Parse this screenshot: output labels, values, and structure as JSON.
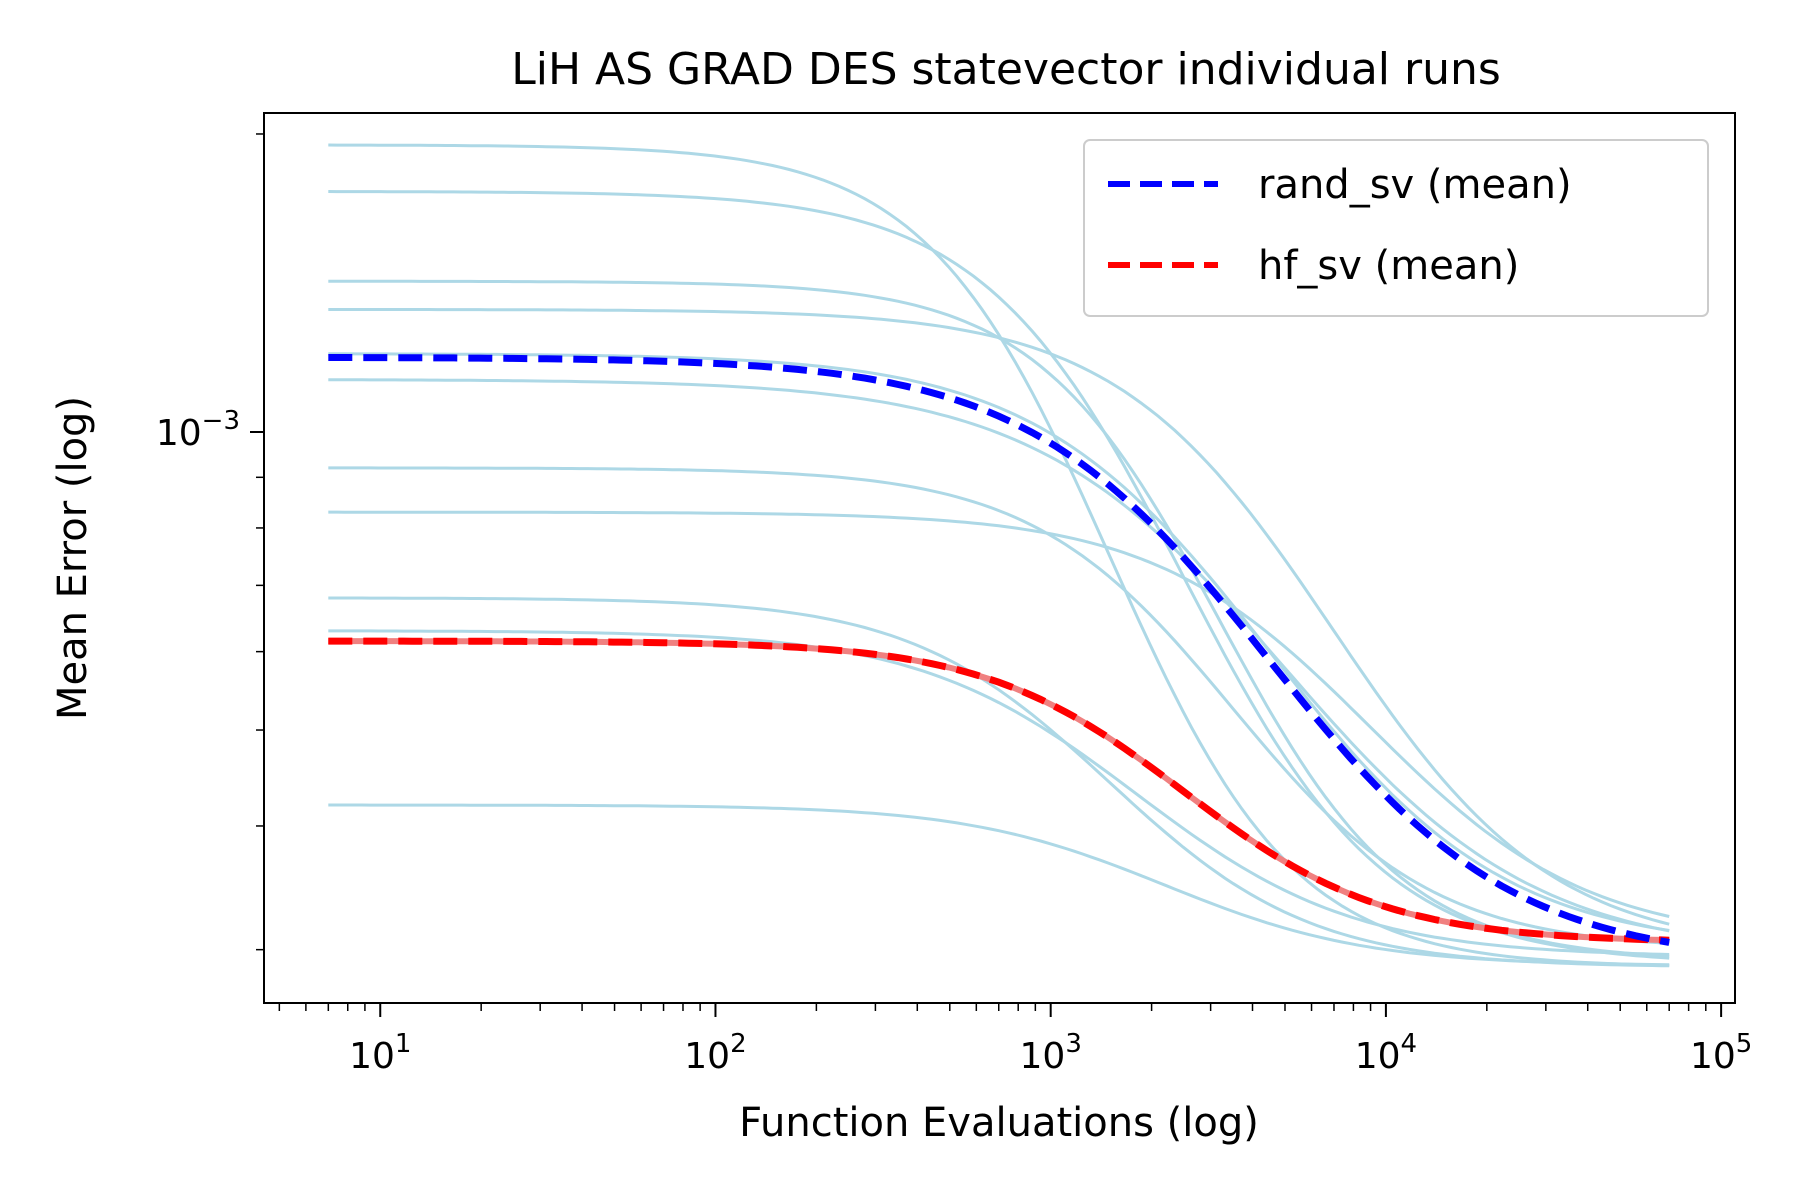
{
  "chart_data": {
    "type": "line",
    "title": "LiH AS GRAD DES statevector individual runs",
    "xlabel": "Function Evaluations (log)",
    "ylabel": "Mean Error (log)",
    "xscale": "log",
    "yscale": "log",
    "xlim": [
      4.5,
      110000
    ],
    "ylim": [
      0.000265,
      0.0021
    ],
    "x_ticks": [
      {
        "value": 10,
        "label": "10",
        "exp": "1"
      },
      {
        "value": 100,
        "label": "10",
        "exp": "2"
      },
      {
        "value": 1000,
        "label": "10",
        "exp": "3"
      },
      {
        "value": 10000,
        "label": "10",
        "exp": "4"
      },
      {
        "value": 100000,
        "label": "10",
        "exp": "5"
      }
    ],
    "y_ticks": [
      {
        "value": 0.001,
        "label": "10",
        "exp": "−3"
      }
    ],
    "legend_position": "top-right",
    "legend": [
      {
        "name": "rand_sv (mean)",
        "color": "#0000ff",
        "style": "dashed"
      },
      {
        "name": "hf_sv (mean)",
        "color": "#ff0000",
        "style": "dashed"
      }
    ],
    "x_range": [
      7,
      70000
    ],
    "individual_runs_color": "#add8e6",
    "hf_individual_color": "#f08080",
    "individual_runs": [
      {
        "start": 0.00195,
        "end": 0.000288,
        "midpoint": 1500,
        "width": 1.1
      },
      {
        "start": 0.00175,
        "end": 0.00029,
        "midpoint": 2500,
        "width": 1.2
      },
      {
        "start": 0.00142,
        "end": 0.000292,
        "midpoint": 3200,
        "width": 1.1
      },
      {
        "start": 0.00133,
        "end": 0.000298,
        "midpoint": 7000,
        "width": 1.3
      },
      {
        "start": 0.0012,
        "end": 0.0003,
        "midpoint": 4500,
        "width": 1.4
      },
      {
        "start": 0.00113,
        "end": 0.000295,
        "midpoint": 5000,
        "width": 1.5
      },
      {
        "start": 0.00092,
        "end": 0.0003,
        "midpoint": 3500,
        "width": 1.2
      },
      {
        "start": 0.00083,
        "end": 0.000305,
        "midpoint": 9000,
        "width": 1.3
      },
      {
        "start": 0.00068,
        "end": 0.000288,
        "midpoint": 1500,
        "width": 1.2
      },
      {
        "start": 0.00063,
        "end": 0.000295,
        "midpoint": 1800,
        "width": 1.3
      },
      {
        "start": 0.00042,
        "end": 0.000289,
        "midpoint": 2200,
        "width": 1.2
      }
    ],
    "series": [
      {
        "name": "hf_sv (mean)",
        "start": 0.000615,
        "end": 0.000305,
        "midpoint": 2500,
        "width": 1.2
      },
      {
        "name": "rand_sv (mean)",
        "start": 0.00119,
        "end": 0.00029,
        "midpoint": 4500,
        "width": 1.45
      }
    ]
  }
}
